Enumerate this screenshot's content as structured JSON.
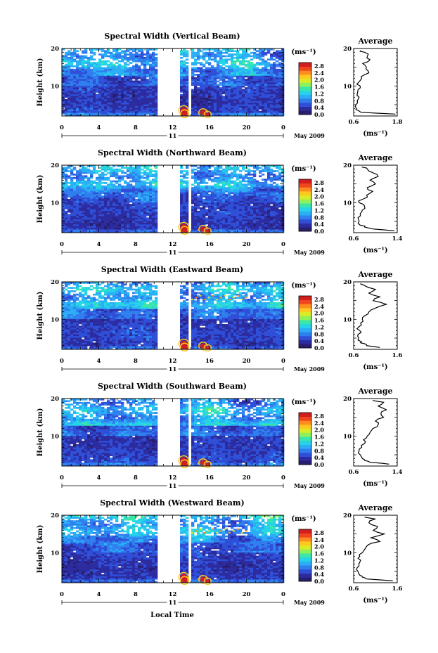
{
  "chart_data": [
    {
      "type": "heatmap",
      "title": "Spectral Width (Vertical Beam)",
      "ylabel": "Height (km)",
      "x_ticks": [
        "0",
        "4",
        "8",
        "12",
        "16",
        "20",
        "0"
      ],
      "y_ticks": [
        "20",
        "10"
      ],
      "date_day": "11",
      "date_label": "May 2009",
      "colorbar_unit": "(ms⁻¹)",
      "colorbar_ticks": [
        "2.8",
        "2.4",
        "2.0",
        "1.6",
        "1.2",
        "0.8",
        "0.4",
        "0.0"
      ],
      "xlim": [
        0,
        24
      ],
      "ylim": [
        2,
        20
      ],
      "data_gap": [
        10.3,
        12.9
      ],
      "data_gap2": [
        13.6,
        13.9
      ],
      "average_profile": {
        "title": "Average",
        "xlabel": "(ms⁻¹)",
        "x_ticks": [
          "0.6",
          "1.8"
        ],
        "y_ticks": [
          "20",
          "10"
        ],
        "xlim": [
          0.6,
          1.8
        ],
        "height": [
          2.5,
          3,
          3.5,
          4,
          5,
          6,
          7,
          8,
          9,
          10,
          11,
          12,
          13,
          14,
          15,
          16,
          17,
          18,
          19,
          19.5
        ],
        "value": [
          1.75,
          0.8,
          0.72,
          0.68,
          0.66,
          0.7,
          0.75,
          0.7,
          0.72,
          0.78,
          0.74,
          0.82,
          0.9,
          1.0,
          0.95,
          0.85,
          1.05,
          0.98,
          0.9,
          0.8
        ]
      }
    },
    {
      "type": "heatmap",
      "title": "Spectral Width (Northward Beam)",
      "ylabel": "Height (km)",
      "x_ticks": [
        "0",
        "4",
        "8",
        "12",
        "16",
        "20",
        "0"
      ],
      "y_ticks": [
        "20",
        "10"
      ],
      "date_day": "11",
      "date_label": "May 2009",
      "colorbar_unit": "(ms⁻¹)",
      "colorbar_ticks": [
        "2.8",
        "2.4",
        "2.0",
        "1.6",
        "1.2",
        "0.8",
        "0.4",
        "0.0"
      ],
      "xlim": [
        0,
        24
      ],
      "ylim": [
        2,
        20
      ],
      "data_gap": [
        10.3,
        12.9
      ],
      "data_gap2": [
        13.6,
        13.9
      ],
      "average_profile": {
        "title": "Average",
        "xlabel": "(ms⁻¹)",
        "x_ticks": [
          "0.6",
          "1.4"
        ],
        "y_ticks": [
          "20",
          "10"
        ],
        "xlim": [
          0.6,
          1.4
        ],
        "height": [
          2.5,
          3,
          3.5,
          4,
          5,
          6,
          7,
          8,
          9,
          10,
          11,
          12,
          13,
          14,
          15,
          16,
          17,
          18,
          19,
          19.5
        ],
        "value": [
          1.35,
          0.95,
          0.8,
          0.72,
          0.7,
          0.68,
          0.72,
          0.76,
          0.8,
          0.7,
          0.78,
          0.84,
          0.95,
          0.85,
          1.0,
          0.9,
          1.05,
          0.95,
          0.85,
          0.75
        ]
      }
    },
    {
      "type": "heatmap",
      "title": "Spectral Width (Eastward Beam)",
      "ylabel": "Height (km)",
      "x_ticks": [
        "0",
        "4",
        "8",
        "12",
        "16",
        "20",
        "0"
      ],
      "y_ticks": [
        "20",
        "10"
      ],
      "date_day": "11",
      "date_label": "May 2009",
      "colorbar_unit": "(ms⁻¹)",
      "colorbar_ticks": [
        "2.8",
        "2.4",
        "2.0",
        "1.6",
        "1.2",
        "0.8",
        "0.4",
        "0.0"
      ],
      "xlim": [
        0,
        24
      ],
      "ylim": [
        2,
        20
      ],
      "data_gap": [
        10.3,
        12.9
      ],
      "data_gap2": [
        13.6,
        13.9
      ],
      "average_profile": {
        "title": "Average",
        "xlabel": "(ms⁻¹)",
        "x_ticks": [
          "0.6",
          "1.6"
        ],
        "y_ticks": [
          "20",
          "10"
        ],
        "xlim": [
          0.6,
          1.6
        ],
        "height": [
          2.5,
          3,
          3.5,
          4,
          5,
          6,
          7,
          8,
          9,
          10,
          11,
          12,
          13,
          14,
          15,
          16,
          17,
          18,
          19,
          19.5
        ],
        "value": [
          1.2,
          0.9,
          0.85,
          0.78,
          0.72,
          0.7,
          0.74,
          0.72,
          0.76,
          0.8,
          0.86,
          0.95,
          1.1,
          1.35,
          1.05,
          1.2,
          0.95,
          1.1,
          0.85,
          0.75
        ]
      }
    },
    {
      "type": "heatmap",
      "title": "Spectral Width (Southward Beam)",
      "ylabel": "Height (km)",
      "x_ticks": [
        "0",
        "4",
        "8",
        "12",
        "16",
        "20",
        "0"
      ],
      "y_ticks": [
        "20",
        "10"
      ],
      "date_day": "11",
      "date_label": "May 2009",
      "colorbar_unit": "(ms⁻¹)",
      "colorbar_ticks": [
        "2.8",
        "2.4",
        "2.0",
        "1.6",
        "1.2",
        "0.8",
        "0.4",
        "0.0"
      ],
      "xlim": [
        0,
        24
      ],
      "ylim": [
        2,
        20
      ],
      "data_gap": [
        10.3,
        12.9
      ],
      "data_gap2": [
        13.6,
        13.9
      ],
      "average_profile": {
        "title": "Average",
        "xlabel": "(ms⁻¹)",
        "x_ticks": [
          "0.6",
          "1.4"
        ],
        "y_ticks": [
          "20",
          "10"
        ],
        "xlim": [
          0.6,
          1.4
        ],
        "height": [
          2.5,
          3,
          3.5,
          4,
          5,
          6,
          7,
          8,
          9,
          10,
          11,
          12,
          13,
          14,
          15,
          16,
          17,
          18,
          19,
          19.5
        ],
        "value": [
          1.25,
          0.9,
          0.8,
          0.76,
          0.72,
          0.7,
          0.75,
          0.8,
          0.78,
          0.85,
          0.9,
          0.95,
          1.05,
          1.0,
          1.15,
          1.1,
          1.2,
          1.05,
          1.15,
          0.95
        ]
      }
    },
    {
      "type": "heatmap",
      "title": "Spectral Width (Westward Beam)",
      "ylabel": "Height (km)",
      "x_ticks": [
        "0",
        "4",
        "8",
        "12",
        "16",
        "20",
        "0"
      ],
      "y_ticks": [
        "20",
        "10"
      ],
      "date_day": "11",
      "date_label": "May 2009",
      "colorbar_unit": "(ms⁻¹)",
      "colorbar_ticks": [
        "2.8",
        "2.4",
        "2.0",
        "1.6",
        "1.2",
        "0.8",
        "0.4",
        "0.0"
      ],
      "xlim": [
        0,
        24
      ],
      "ylim": [
        2,
        20
      ],
      "data_gap": [
        10.3,
        12.9
      ],
      "data_gap2": [
        13.6,
        13.9
      ],
      "average_profile": {
        "title": "Average",
        "xlabel": "(ms⁻¹)",
        "x_ticks": [
          "0.6",
          "1.6"
        ],
        "y_ticks": [
          "20",
          "10"
        ],
        "xlim": [
          0.6,
          1.6
        ],
        "height": [
          2.5,
          3,
          3.5,
          4,
          5,
          6,
          7,
          8,
          9,
          10,
          11,
          12,
          13,
          14,
          15,
          16,
          17,
          18,
          19,
          19.5
        ],
        "value": [
          1.5,
          0.9,
          0.8,
          0.74,
          0.7,
          0.68,
          0.72,
          0.76,
          0.74,
          0.8,
          0.86,
          0.92,
          1.2,
          1.0,
          1.3,
          1.05,
          1.15,
          0.95,
          1.1,
          0.85
        ]
      }
    }
  ],
  "bottom_xlabel": "Local Time",
  "colormap": [
    "#281e6e",
    "#2c2ca0",
    "#2f4fd8",
    "#2f7fee",
    "#2aaef6",
    "#26d4e6",
    "#3ce6a8",
    "#8ef05a",
    "#d8ec28",
    "#ffc81e",
    "#ff8c1e",
    "#f0461e",
    "#d21e1e"
  ]
}
